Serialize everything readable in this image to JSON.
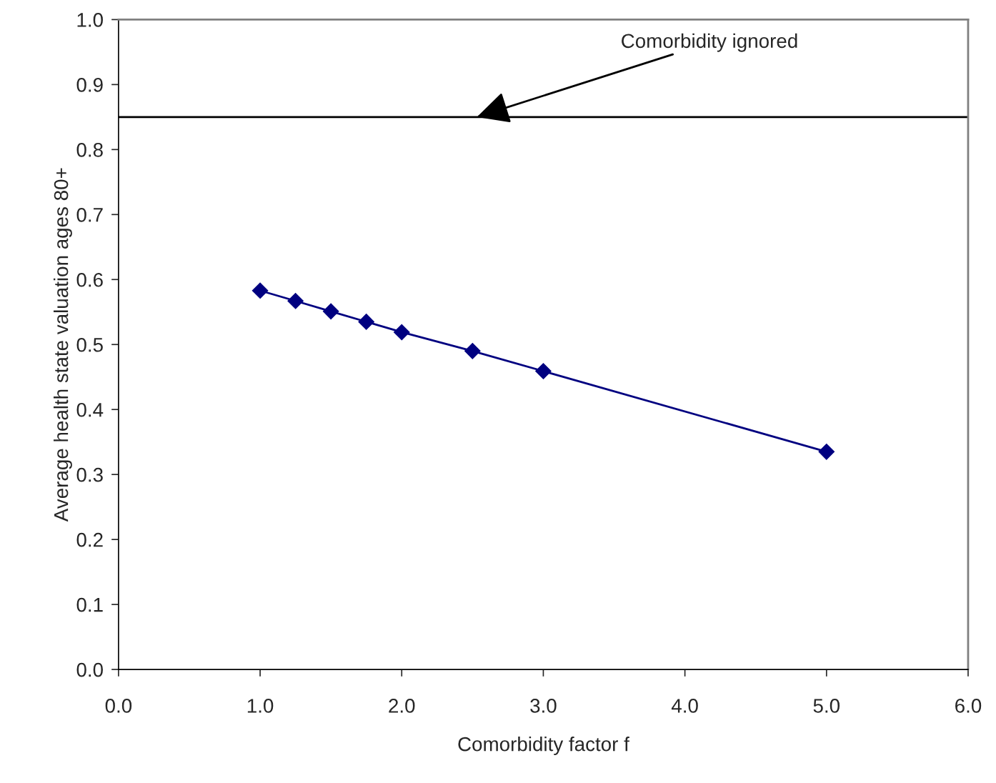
{
  "chart_data": {
    "type": "line",
    "xlabel": "Comorbidity factor f",
    "ylabel": "Average health state valuation ages 80+",
    "x": [
      1.0,
      1.25,
      1.5,
      1.75,
      2.0,
      2.5,
      3.0,
      5.0
    ],
    "series": [
      {
        "color": "#000080",
        "values": [
          0.583,
          0.567,
          0.551,
          0.535,
          0.519,
          0.49,
          0.459,
          0.335
        ]
      }
    ],
    "marker": "diamond",
    "line_style": "solid",
    "xlim": [
      0,
      6
    ],
    "xticks": [
      {
        "value": 0,
        "label": "0.0"
      },
      {
        "value": 1,
        "label": "1.0"
      },
      {
        "value": 2,
        "label": "2.0"
      },
      {
        "value": 3,
        "label": "3.0"
      },
      {
        "value": 4,
        "label": "4.0"
      },
      {
        "value": 5,
        "label": "5.0"
      },
      {
        "value": 6,
        "label": "6.0"
      }
    ],
    "ylim": [
      0,
      1
    ],
    "yticks": [
      {
        "value": 0,
        "label": "0.0"
      },
      {
        "value": 0.1,
        "label": "0.1"
      },
      {
        "value": 0.2,
        "label": "0.2"
      },
      {
        "value": 0.3,
        "label": "0.3"
      },
      {
        "value": 0.4,
        "label": "0.4"
      },
      {
        "value": 0.5,
        "label": "0.5"
      },
      {
        "value": 0.6,
        "label": "0.6"
      },
      {
        "value": 0.7,
        "label": "0.7"
      },
      {
        "value": 0.8,
        "label": "0.8"
      },
      {
        "value": 0.9,
        "label": "0.9"
      },
      {
        "value": 1.0,
        "label": "1.0"
      }
    ],
    "ref_lines": [
      {
        "axis": "y",
        "value": 0.85,
        "color": "#000000",
        "line_style": "solid"
      }
    ],
    "annotations": [
      {
        "text": "Comorbidity ignored",
        "x": 2.53,
        "y": 0.85
      }
    ],
    "grid": false,
    "legend": false
  }
}
